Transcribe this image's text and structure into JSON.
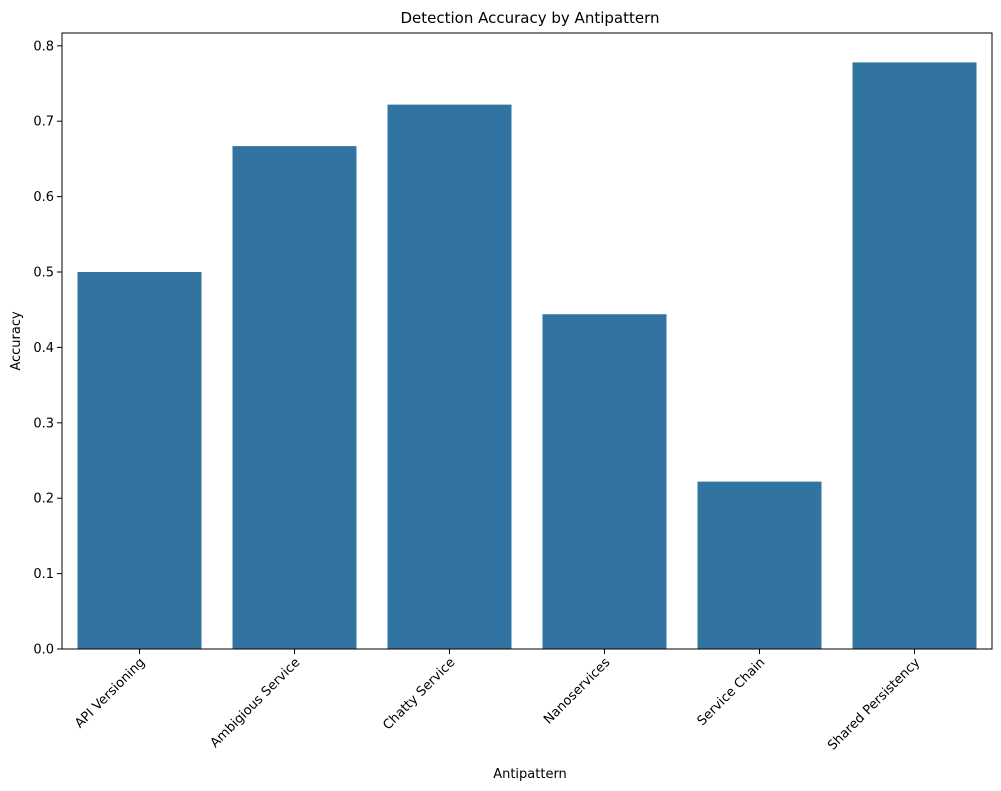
{
  "chart_data": {
    "type": "bar",
    "title": "Detection Accuracy by Antipattern",
    "xlabel": "Antipattern",
    "ylabel": "Accuracy",
    "categories": [
      "API Versioning",
      "Ambigious Service",
      "Chatty Service",
      "Nanoservices",
      "Service Chain",
      "Shared Persistency"
    ],
    "values": [
      0.5,
      0.667,
      0.722,
      0.444,
      0.222,
      0.778
    ],
    "ylim": [
      0,
      0.817
    ],
    "yticks": [
      0.0,
      0.1,
      0.2,
      0.3,
      0.4,
      0.5,
      0.6,
      0.7,
      0.8
    ],
    "ytick_labels": [
      "0.0",
      "0.1",
      "0.2",
      "0.3",
      "0.4",
      "0.5",
      "0.6",
      "0.7",
      "0.8"
    ],
    "grid": false,
    "bar_color": "#3274a1"
  }
}
